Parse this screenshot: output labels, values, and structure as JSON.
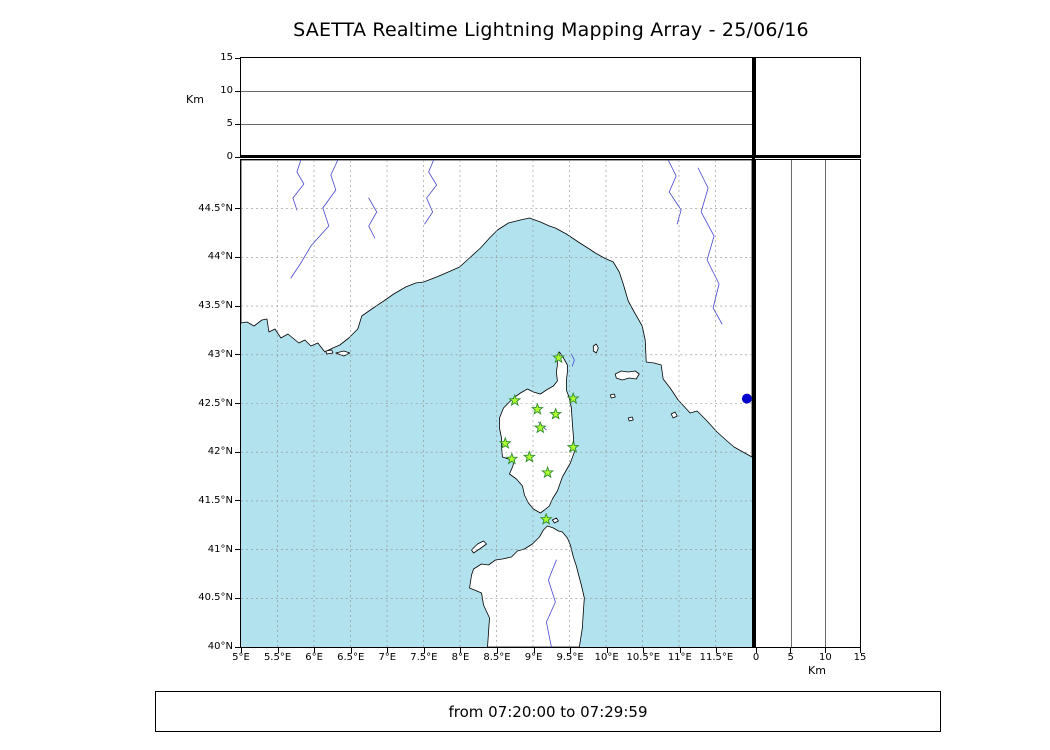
{
  "title": "SAETTA Realtime Lightning Mapping Array - 25/06/16",
  "status_bar": {
    "text": "from 07:20:00 to 07:29:59"
  },
  "colors": {
    "sea": "#b2e2ee",
    "land": "#ffffff",
    "coast": "#000000",
    "river": "#4747cf",
    "grid": "#8c8c8c",
    "station_fill": "#adff2f",
    "station_stroke": "#2e8b2e",
    "event_dot": "#0000cc"
  },
  "chart_data": {
    "type": "scatter",
    "title": "SAETTA Realtime Lightning Mapping Array - 25/06/16",
    "time_window": "from 07:20:00 to 07:29:59",
    "map": {
      "lon_range": [
        5,
        12
      ],
      "lat_range": [
        40,
        45
      ],
      "lon_ticks": [
        5,
        5.5,
        6,
        6.5,
        7,
        7.5,
        8,
        8.5,
        9,
        9.5,
        10,
        10.5,
        11,
        11.5
      ],
      "lon_tick_labels": [
        "5°E",
        "5.5°E",
        "6°E",
        "6.5°E",
        "7°E",
        "7.5°E",
        "8°E",
        "8.5°E",
        "9°E",
        "9.5°E",
        "10°E",
        "10.5°E",
        "11°E",
        "11.5°E"
      ],
      "lat_ticks": [
        40,
        40.5,
        41,
        41.5,
        42,
        42.5,
        43,
        43.5,
        44,
        44.5
      ],
      "lat_tick_labels": [
        "40°N",
        "40.5°N",
        "41°N",
        "41.5°N",
        "42°N",
        "42.5°N",
        "43°N",
        "43.5°N",
        "44°N",
        "44.5°N"
      ],
      "grid": true,
      "stations": [
        {
          "lon": 9.35,
          "lat": 42.97
        },
        {
          "lon": 8.75,
          "lat": 42.53
        },
        {
          "lon": 9.06,
          "lat": 42.44
        },
        {
          "lon": 9.55,
          "lat": 42.55
        },
        {
          "lon": 9.31,
          "lat": 42.39
        },
        {
          "lon": 9.1,
          "lat": 42.25
        },
        {
          "lon": 8.62,
          "lat": 42.09
        },
        {
          "lon": 9.55,
          "lat": 42.05
        },
        {
          "lon": 8.71,
          "lat": 41.93
        },
        {
          "lon": 8.95,
          "lat": 41.95
        },
        {
          "lon": 9.2,
          "lat": 41.79
        },
        {
          "lon": 9.18,
          "lat": 41.31
        }
      ],
      "events": [
        {
          "lon": 11.93,
          "lat": 42.55
        }
      ]
    },
    "altitude": {
      "label": "Km",
      "range": [
        0,
        15
      ],
      "ticks": [
        0,
        5,
        10,
        15
      ],
      "tick_labels": [
        "0",
        "5",
        "10",
        "15"
      ]
    }
  }
}
